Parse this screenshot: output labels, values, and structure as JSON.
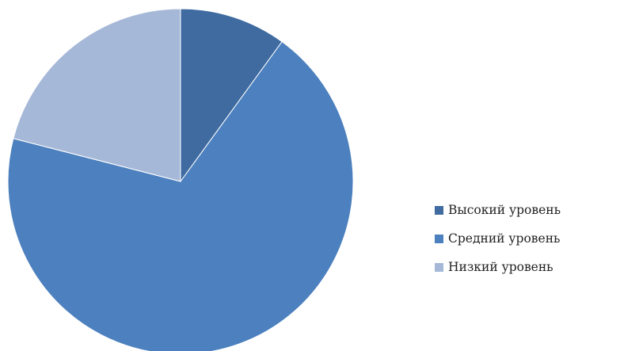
{
  "chart_data": {
    "type": "pie",
    "title": "",
    "start_angle_deg": 0,
    "direction": "clockwise",
    "legend_position": "right",
    "slices": [
      {
        "label": "Высокий уровень",
        "value": 10,
        "color": "#3f6ba1"
      },
      {
        "label": "Средний уровень",
        "value": 69,
        "color": "#4c80be"
      },
      {
        "label": "Низкий уровень",
        "value": 21,
        "color": "#a6b8d8"
      }
    ]
  }
}
